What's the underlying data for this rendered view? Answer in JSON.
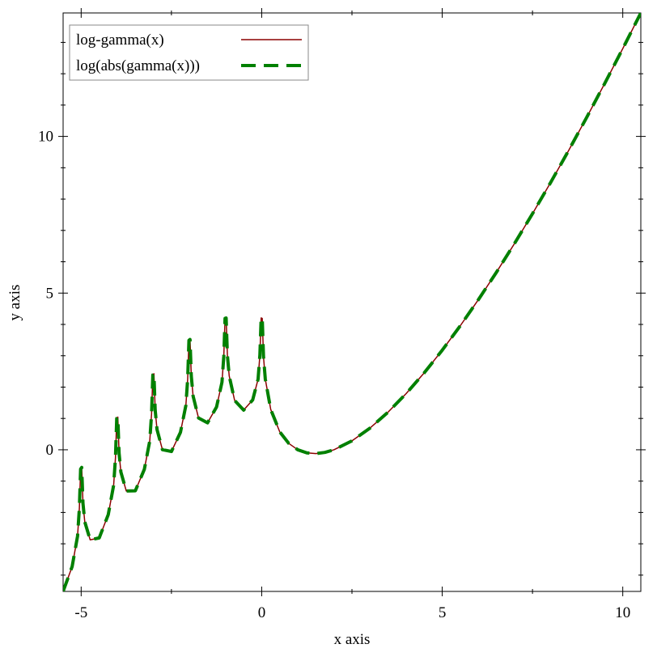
{
  "chart_data": {
    "type": "line",
    "xlabel": "x axis",
    "ylabel": "y axis",
    "x": [
      -5.5,
      -5.25,
      -5.1,
      -5.05,
      -5.015,
      -4.985,
      -4.95,
      -4.9,
      -4.75,
      -4.5,
      -4.25,
      -4.1,
      -4.05,
      -4.015,
      -3.985,
      -3.95,
      -3.9,
      -3.75,
      -3.5,
      -3.25,
      -3.1,
      -3.05,
      -3.015,
      -2.985,
      -2.95,
      -2.9,
      -2.75,
      -2.5,
      -2.25,
      -2.1,
      -2.05,
      -2.015,
      -1.985,
      -1.95,
      -1.9,
      -1.75,
      -1.5,
      -1.25,
      -1.1,
      -1.05,
      -1.015,
      -0.985,
      -0.95,
      -0.9,
      -0.75,
      -0.5,
      -0.25,
      -0.1,
      -0.05,
      -0.015,
      0.015,
      0.05,
      0.1,
      0.25,
      0.5,
      0.75,
      1,
      1.25,
      1.5,
      1.75,
      2,
      2.5,
      3,
      3.5,
      4,
      4.5,
      5,
      5.5,
      6,
      6.5,
      7,
      7.5,
      8,
      8.5,
      9,
      9.5,
      10,
      10.5
    ],
    "series": [
      {
        "name": "log-gamma(x)",
        "color": "#8b0000",
        "dashed": false,
        "values": [
          -4.518,
          -3.728,
          -2.756,
          -1.873,
          -0.614,
          -0.562,
          -1.703,
          -2.299,
          -2.875,
          -2.813,
          -2.07,
          -1.127,
          -0.254,
          0.999,
          1.044,
          -0.103,
          -0.71,
          -1.317,
          -1.309,
          -0.623,
          0.284,
          1.145,
          2.389,
          2.427,
          1.271,
          0.651,
          0.005,
          -0.056,
          0.556,
          1.416,
          2.26,
          3.492,
          3.52,
          2.352,
          1.716,
          1.016,
          0.86,
          1.367,
          2.157,
          2.978,
          4.193,
          4.206,
          3.02,
          2.358,
          1.576,
          1.266,
          1.59,
          2.253,
          3.027,
          4.208,
          4.191,
          2.969,
          2.253,
          1.288,
          0.572,
          0.203,
          0,
          -0.098,
          -0.121,
          -0.084,
          0,
          0.285,
          0.693,
          1.201,
          1.792,
          2.454,
          3.178,
          3.958,
          4.788,
          5.663,
          6.579,
          7.534,
          8.525,
          9.549,
          10.605,
          11.689,
          12.802,
          13.941
        ]
      },
      {
        "name": "log(abs(gamma(x)))",
        "color": "#008000",
        "dashed": true,
        "values": [
          -4.518,
          -3.728,
          -2.756,
          -1.873,
          -0.614,
          -0.562,
          -1.703,
          -2.299,
          -2.875,
          -2.813,
          -2.07,
          -1.127,
          -0.254,
          0.999,
          1.044,
          -0.103,
          -0.71,
          -1.317,
          -1.309,
          -0.623,
          0.284,
          1.145,
          2.389,
          2.427,
          1.271,
          0.651,
          0.005,
          -0.056,
          0.556,
          1.416,
          2.26,
          3.492,
          3.52,
          2.352,
          1.716,
          1.016,
          0.86,
          1.367,
          2.157,
          2.978,
          4.193,
          4.206,
          3.02,
          2.358,
          1.576,
          1.266,
          1.59,
          2.253,
          3.027,
          4.208,
          4.191,
          2.969,
          2.253,
          1.288,
          0.572,
          0.203,
          0,
          -0.098,
          -0.121,
          -0.084,
          0,
          0.285,
          0.693,
          1.201,
          1.792,
          2.454,
          3.178,
          3.958,
          4.788,
          5.663,
          6.579,
          7.534,
          8.525,
          9.549,
          10.605,
          11.689,
          12.802,
          13.941
        ]
      }
    ],
    "xlim": [
      -5.5,
      10.5
    ],
    "ylim": [
      -4.52,
      13.94
    ],
    "xticks": [
      -5,
      0,
      5,
      10
    ],
    "yticks": [
      0,
      5,
      10
    ],
    "xminorticks": [
      -2.5,
      2.5,
      7.5
    ],
    "yminorticks": [
      -4,
      -3,
      -2,
      -1,
      1,
      2,
      3,
      4,
      6,
      7,
      8,
      9,
      11,
      12,
      13
    ],
    "legend": "top-left"
  }
}
